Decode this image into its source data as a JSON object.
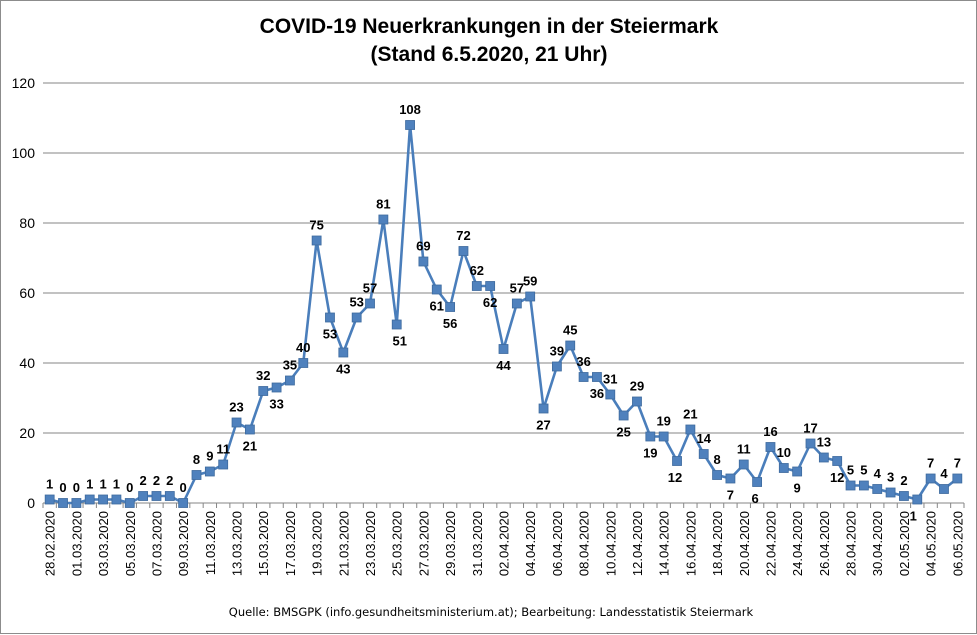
{
  "chart_data": {
    "type": "line",
    "title": "COVID-19 Neuerkrankungen in der Steiermark",
    "subtitle": "(Stand 6.5.2020, 21 Uhr)",
    "source": "Quelle: BMSGPK (info.gesundheitsministerium.at); Bearbeitung: Landesstatistik Steiermark",
    "ylim": [
      0,
      120
    ],
    "yticks": [
      0,
      20,
      40,
      60,
      80,
      100,
      120
    ],
    "grid": true,
    "legend": "none",
    "line_color": "#4a7ebb",
    "marker_color": "#4f81bd",
    "x": [
      "28.02.2020",
      "29.02.2020",
      "01.03.2020",
      "02.03.2020",
      "03.03.2020",
      "04.03.2020",
      "05.03.2020",
      "06.03.2020",
      "07.03.2020",
      "08.03.2020",
      "09.03.2020",
      "10.03.2020",
      "11.03.2020",
      "12.03.2020",
      "13.03.2020",
      "14.03.2020",
      "15.03.2020",
      "16.03.2020",
      "17.03.2020",
      "18.03.2020",
      "19.03.2020",
      "20.03.2020",
      "21.03.2020",
      "22.03.2020",
      "23.03.2020",
      "24.03.2020",
      "25.03.2020",
      "26.03.2020",
      "27.03.2020",
      "28.03.2020",
      "29.03.2020",
      "30.03.2020",
      "31.03.2020",
      "01.04.2020",
      "02.04.2020",
      "03.04.2020",
      "04.04.2020",
      "05.04.2020",
      "06.04.2020",
      "07.04.2020",
      "08.04.2020",
      "09.04.2020",
      "10.04.2020",
      "11.04.2020",
      "12.04.2020",
      "13.04.2020",
      "14.04.2020",
      "15.04.2020",
      "16.04.2020",
      "17.04.2020",
      "18.04.2020",
      "19.04.2020",
      "20.04.2020",
      "21.04.2020",
      "22.04.2020",
      "23.04.2020",
      "24.04.2020",
      "25.04.2020",
      "26.04.2020",
      "27.04.2020",
      "28.04.2020",
      "29.04.2020",
      "30.04.2020",
      "01.05.2020",
      "02.05.2020",
      "03.05.2020",
      "04.05.2020",
      "05.05.2020",
      "06.05.2020"
    ],
    "x_tick_labels": [
      "28.02.2020",
      "01.03.2020",
      "03.03.2020",
      "05.03.2020",
      "07.03.2020",
      "09.03.2020",
      "11.03.2020",
      "13.03.2020",
      "15.03.2020",
      "17.03.2020",
      "19.03.2020",
      "21.03.2020",
      "23.03.2020",
      "25.03.2020",
      "27.03.2020",
      "29.03.2020",
      "31.03.2020",
      "02.04.2020",
      "04.04.2020",
      "06.04.2020",
      "08.04.2020",
      "10.04.2020",
      "12.04.2020",
      "14.04.2020",
      "16.04.2020",
      "18.04.2020",
      "20.04.2020",
      "22.04.2020",
      "24.04.2020",
      "26.04.2020",
      "28.04.2020",
      "30.04.2020",
      "02.05.2020",
      "04.05.2020",
      "06.05.2020"
    ],
    "values": [
      1,
      0,
      0,
      1,
      1,
      1,
      0,
      2,
      2,
      2,
      0,
      8,
      9,
      11,
      23,
      21,
      32,
      33,
      35,
      40,
      75,
      53,
      43,
      53,
      57,
      81,
      51,
      108,
      69,
      61,
      56,
      72,
      62,
      62,
      44,
      57,
      59,
      27,
      39,
      45,
      36,
      36,
      31,
      25,
      29,
      19,
      19,
      12,
      21,
      14,
      8,
      7,
      11,
      6,
      16,
      10,
      9,
      17,
      13,
      12,
      5,
      5,
      4,
      3,
      2,
      1,
      7,
      4,
      7
    ],
    "data_labels": [
      "1",
      "0",
      "0",
      "1",
      "1",
      "1",
      "0",
      "2",
      "2",
      "2",
      "0",
      "8",
      "9",
      "11",
      "23",
      "21",
      "32",
      "33",
      "35",
      "40",
      "75",
      "53",
      "43",
      "53",
      "57",
      "81",
      "51",
      "108",
      "69",
      "61",
      "56",
      "72",
      "62",
      "62",
      "44",
      "57",
      "59",
      "27",
      "39",
      "45",
      "36",
      "36",
      "31",
      "25",
      "29",
      "19",
      "19",
      "12",
      "21",
      "14",
      "8",
      "7",
      "11",
      "6",
      "16",
      "10",
      "9",
      "17",
      "13",
      "12",
      "5",
      "5",
      "4",
      "3",
      "2",
      "1",
      "7",
      "4",
      "7"
    ]
  }
}
